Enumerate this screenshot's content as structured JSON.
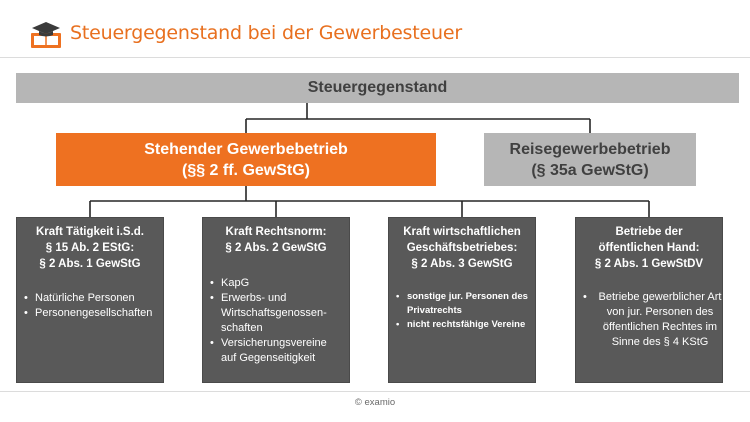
{
  "header": {
    "title": "Steuergegenstand bei der Gewerbesteuer"
  },
  "colors": {
    "accent": "#ee7121",
    "box_gray": "#b6b6b6",
    "card_dark": "#595959",
    "line": "#262626"
  },
  "diagram": {
    "root": "Steuergegenstand",
    "branches": [
      {
        "line1": "Stehender Gewerbebetrieb",
        "line2": "(§§ 2 ff. GewStG)"
      },
      {
        "line1": "Reisegewerbebetrieb",
        "line2": "(§ 35a GewStG)"
      }
    ],
    "cards": [
      {
        "head": [
          "Kraft Tätigkeit i.S.d.",
          "§ 15 Ab. 2 EStG:",
          "§ 2 Abs. 1 GewStG"
        ],
        "items": [
          "Natürliche Personen",
          "Personengesellschaften"
        ]
      },
      {
        "head": [
          "Kraft Rechtsnorm:",
          "§ 2 Abs. 2 GewStG"
        ],
        "items": [
          "KapG",
          "Erwerbs- und Wirtschaftsgenossen-schaften",
          "Versicherungsvereine auf Gegenseitigkeit"
        ]
      },
      {
        "head": [
          "Kraft wirtschaftlichen",
          "Geschäftsbetriebes:",
          "§ 2 Abs. 3 GewStG"
        ],
        "items": [
          "sonstige jur. Personen des Privatrechts",
          "nicht rechtsfähige Vereine"
        ]
      },
      {
        "head": [
          "Betriebe der",
          "öffentlichen Hand:",
          "§ 2 Abs. 1 GewStDV"
        ],
        "items": [
          "Betriebe gewerblicher Art von jur. Personen des öffentlichen Rechtes im Sinne des § 4 KStG"
        ]
      }
    ]
  },
  "footer": {
    "copyright": "© examio"
  }
}
